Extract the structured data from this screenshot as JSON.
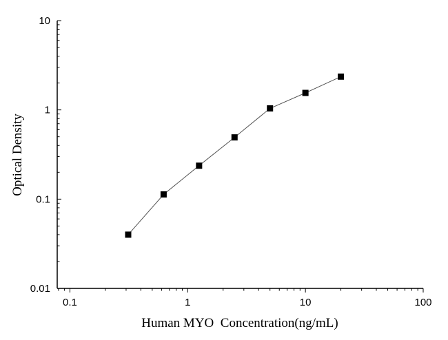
{
  "chart_data": {
    "type": "line",
    "title": "",
    "xlabel": "Human MYO  Concentration(ng/mL)",
    "ylabel": "Optical Density",
    "x_scale": "log",
    "y_scale": "log",
    "xlim": [
      0.078,
      100
    ],
    "ylim": [
      0.01,
      10
    ],
    "x_ticks": [
      0.1,
      1,
      10,
      100
    ],
    "x_tick_labels": [
      "0.1",
      "1",
      "10",
      "100"
    ],
    "y_ticks": [
      0.01,
      0.1,
      1,
      10
    ],
    "y_tick_labels": [
      "0.01",
      "0.1",
      "1",
      "10"
    ],
    "grid": false,
    "marker": "square",
    "color": "#000000",
    "series": [
      {
        "x": [
          0.3125,
          0.625,
          1.25,
          2.5,
          5,
          10,
          20
        ],
        "y": [
          0.04,
          0.113,
          0.237,
          0.492,
          1.04,
          1.55,
          2.36
        ]
      }
    ]
  }
}
